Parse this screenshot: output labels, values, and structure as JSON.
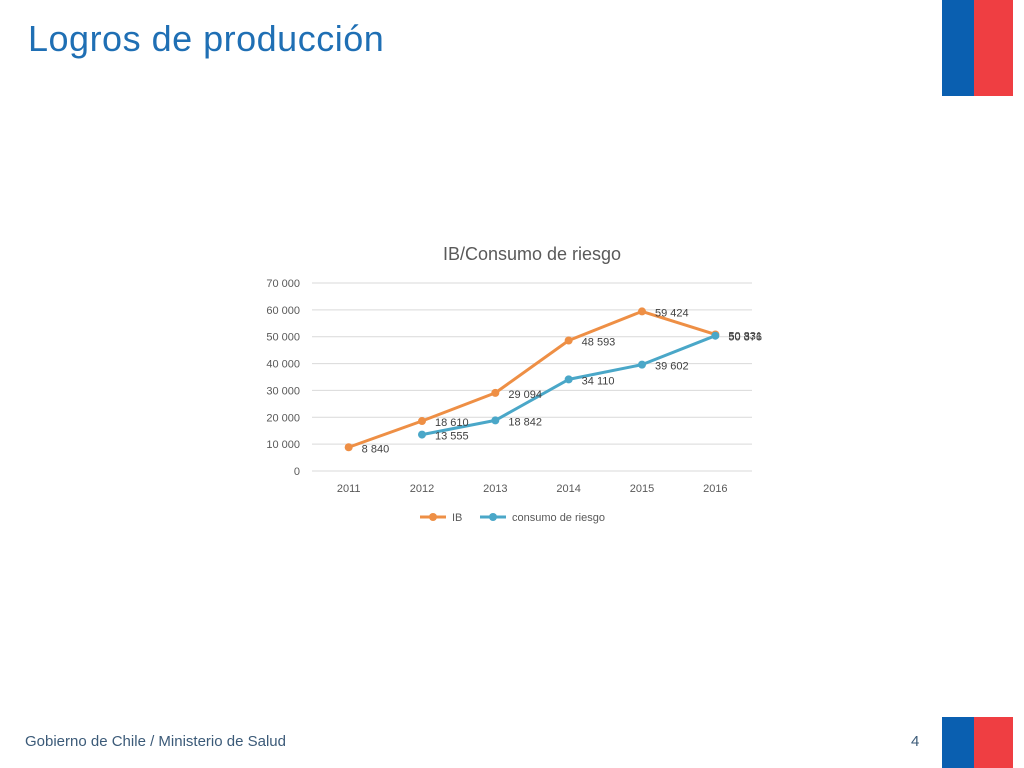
{
  "slide": {
    "title": "Logros de producción",
    "footer": "Gobierno de Chile / Ministerio de Salud",
    "page_number": "4"
  },
  "colors": {
    "title": "#1f6fb4",
    "flag_blue": "#0a5fb0",
    "flag_red": "#ef3e42",
    "series_ib": "#ee8f45",
    "series_consumo": "#4aa7c8"
  },
  "chart_data": {
    "type": "line",
    "title": "IB/Consumo de riesgo",
    "categories": [
      "2011",
      "2012",
      "2013",
      "2014",
      "2015",
      "2016"
    ],
    "series": [
      {
        "name": "IB",
        "values": [
          8840,
          18610,
          29094,
          48593,
          59424,
          50831
        ],
        "labels": [
          "8 840",
          "18 610",
          "29 094",
          "48 593",
          "59 424",
          "50 831"
        ],
        "color": "#ee8f45"
      },
      {
        "name": "consumo de riesgo",
        "values": [
          null,
          13555,
          18842,
          34110,
          39602,
          50376
        ],
        "labels": [
          "",
          "13 555",
          "18 842",
          "34 110",
          "39 602",
          "50 376"
        ],
        "color": "#4aa7c8"
      }
    ],
    "yticks": [
      "0",
      "10 000",
      "20 000",
      "30 000",
      "40 000",
      "50 000",
      "60 000",
      "70 000"
    ],
    "ylim": [
      0,
      70000
    ],
    "grid": true,
    "legend": "bottom"
  }
}
